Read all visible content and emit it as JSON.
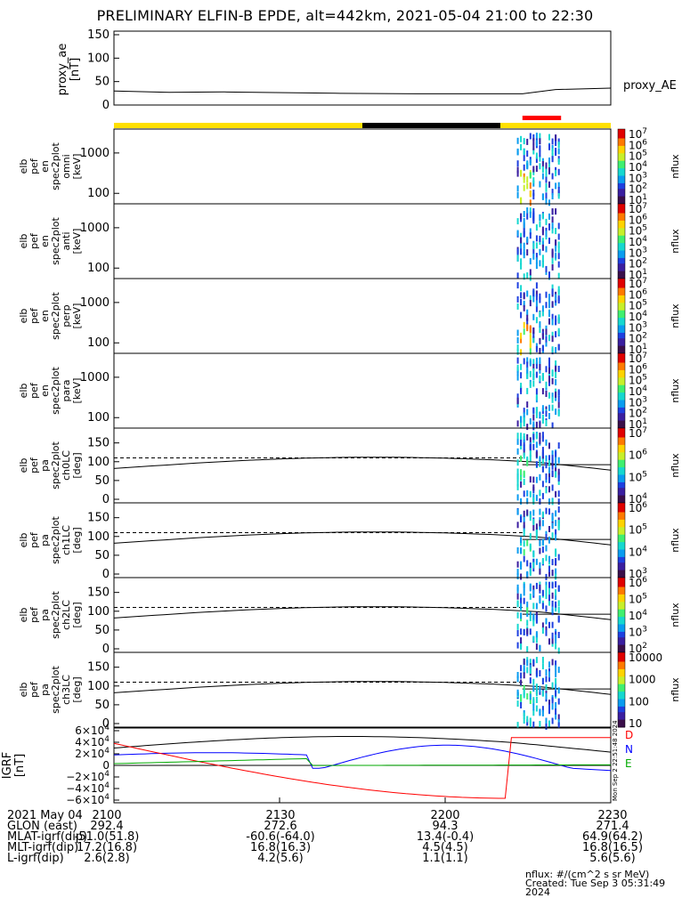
{
  "title": "PRELIMINARY ELFIN-B EPDE, alt=442km, 2021-05-04 21:00 to 22:30",
  "colors": {
    "mode_bar_yellow": "#ffe000",
    "mode_bar_black": "#000000",
    "science_bar_red": "#ff0000",
    "grf_x": "#000000",
    "grf_y": "#0000ff",
    "grf_z": "#ff0000",
    "grf_e": "#00aa00"
  },
  "chart_data": [
    {
      "type": "line",
      "panel": "proxy_ae",
      "ylabel": "proxy_ae [nT]",
      "ylim": [
        0,
        150
      ],
      "yticks": [
        "150",
        "100",
        "50",
        "0"
      ],
      "series": [
        {
          "name": "proxy_AE",
          "x": [
            "21:00",
            "21:10",
            "21:20",
            "21:40",
            "21:55",
            "22:05",
            "22:14",
            "22:20",
            "22:30"
          ],
          "values": [
            30,
            27,
            28,
            25,
            24,
            24,
            24,
            33,
            36
          ]
        }
      ]
    },
    {
      "type": "heatmap",
      "panel": "omni",
      "ylabel": "elb pef en spec2plot omni [keV]",
      "yticks": [
        "1000",
        "100"
      ],
      "colorbar": {
        "label": "nflux",
        "ticks": [
          "10^7",
          "10^6",
          "10^5",
          "10^4",
          "10^3",
          "10^2",
          "10^1"
        ]
      },
      "x_range_active": [
        "22:13",
        "22:21"
      ]
    },
    {
      "type": "heatmap",
      "panel": "anti",
      "ylabel": "elb pef en spec2plot anti [keV]",
      "yticks": [
        "1000",
        "100"
      ],
      "colorbar": {
        "label": "nflux",
        "ticks": [
          "10^7",
          "10^6",
          "10^5",
          "10^4",
          "10^3",
          "10^2",
          "10^1"
        ]
      },
      "x_range_active": [
        "22:13",
        "22:21"
      ]
    },
    {
      "type": "heatmap",
      "panel": "perp",
      "ylabel": "elb pef en spec2plot perp [keV]",
      "yticks": [
        "1000",
        "100"
      ],
      "colorbar": {
        "label": "nflux",
        "ticks": [
          "10^7",
          "10^6",
          "10^5",
          "10^4",
          "10^3",
          "10^2",
          "10^1"
        ]
      },
      "x_range_active": [
        "22:13",
        "22:21"
      ]
    },
    {
      "type": "heatmap",
      "panel": "para",
      "ylabel": "elb pef en spec2plot para [keV]",
      "yticks": [
        "1000",
        "100"
      ],
      "colorbar": {
        "label": "nflux",
        "ticks": [
          "10^7",
          "10^6",
          "10^5",
          "10^4",
          "10^3",
          "10^2",
          "10^1"
        ]
      },
      "x_range_active": [
        "22:13",
        "22:21"
      ]
    },
    {
      "type": "heatmap",
      "panel": "ch0LC",
      "ylabel": "elb pef pa spec2plot ch0LC [deg]",
      "ylim": [
        0,
        180
      ],
      "yticks": [
        "150",
        "100",
        "50",
        "0"
      ],
      "colorbar": {
        "label": "nflux",
        "ticks": [
          "10^7",
          "10^6",
          "10^5",
          "10^4"
        ]
      },
      "x_range_active": [
        "22:13",
        "22:21"
      ]
    },
    {
      "type": "heatmap",
      "panel": "ch1LC",
      "ylabel": "elb pef pa spec2plot ch1LC [deg]",
      "ylim": [
        0,
        180
      ],
      "yticks": [
        "150",
        "100",
        "50",
        "0"
      ],
      "colorbar": {
        "label": "nflux",
        "ticks": [
          "10^6",
          "10^5",
          "10^4",
          "10^3"
        ]
      },
      "x_range_active": [
        "22:13",
        "22:21"
      ]
    },
    {
      "type": "heatmap",
      "panel": "ch2LC",
      "ylabel": "elb pef pa spec2plot ch2LC [deg]",
      "ylim": [
        0,
        180
      ],
      "yticks": [
        "150",
        "100",
        "50",
        "0"
      ],
      "colorbar": {
        "label": "nflux",
        "ticks": [
          "10^6",
          "10^5",
          "10^4",
          "10^3",
          "10^2"
        ]
      },
      "x_range_active": [
        "22:13",
        "22:21"
      ]
    },
    {
      "type": "heatmap",
      "panel": "ch3LC",
      "ylabel": "elb pef pa spec2plot ch3LC [deg]",
      "ylim": [
        0,
        180
      ],
      "yticks": [
        "150",
        "100",
        "50",
        "0"
      ],
      "colorbar": {
        "label": "nflux",
        "ticks": [
          "10000",
          "1000",
          "100",
          "10"
        ]
      },
      "x_range_active": [
        "22:13",
        "22:21"
      ]
    },
    {
      "type": "line",
      "panel": "IGRF",
      "ylabel": "IGRF [nT]",
      "ylim": [
        -60000,
        60000
      ],
      "yticks": [
        "6×10^4",
        "4×10^4",
        "2×10^4",
        "0",
        "−2×10^4",
        "−4×10^4",
        "−6×10^4"
      ],
      "legend": [
        "D",
        "N",
        "E"
      ],
      "side_note": "Mon Sep 2 22:51:48 2024"
    }
  ],
  "xaxis": {
    "ticks": [
      "2100",
      "2130",
      "2200",
      "2230"
    ]
  },
  "footer": {
    "rows": [
      {
        "label": "2021 May 04",
        "values": [
          "2100",
          "2130",
          "2200",
          "2230"
        ]
      },
      {
        "label": "GLON (east)",
        "values": [
          "292.4",
          "272.6",
          "94.3",
          "271.4"
        ]
      },
      {
        "label": "MLAT-igrf(dip)",
        "values": [
          "-51.0(51.8)",
          "-60.6(-64.0)",
          "13.4(-0.4)",
          "64.9(64.2)"
        ]
      },
      {
        "label": "MLT-igrf(dip)",
        "values": [
          "17.2(16.8)",
          "16.8(16.3)",
          "4.5(4.5)",
          "16.8(16.5)"
        ]
      },
      {
        "label": "L-igrf(dip)",
        "values": [
          "2.6(2.8)",
          "4.2(5.6)",
          "1.1(1.1)",
          "5.6(5.6)"
        ]
      }
    ],
    "nflux_note": "nflux: #/(cm^2 s sr MeV)",
    "created": "Created: Tue Sep  3 05:31:49 2024"
  }
}
